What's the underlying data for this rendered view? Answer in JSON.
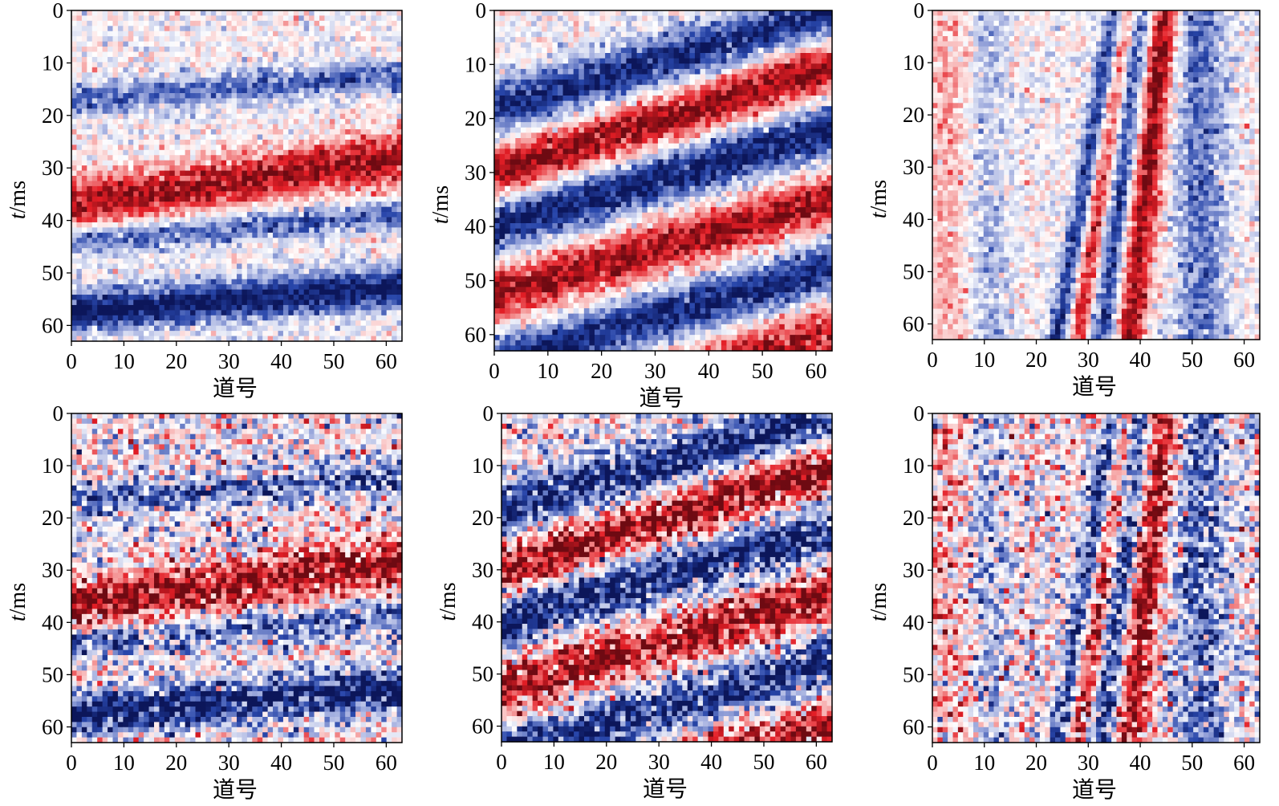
{
  "chart_data": [
    {
      "type": "heatmap",
      "panel": "row1-col1",
      "xlabel": "道号",
      "ylabel_italic": "t",
      "ylabel_rest": "/ms",
      "xticks": [
        0,
        10,
        20,
        30,
        40,
        50,
        60
      ],
      "yticks": [
        0,
        10,
        20,
        30,
        40,
        50,
        60
      ],
      "xlim": [
        0,
        63
      ],
      "ylim": [
        0,
        63
      ],
      "y_inverted": true,
      "colormap": {
        "negative": "#0b1a6e",
        "mid_negative": "#2b4aa8",
        "zero": "#ffffff",
        "mid_positive": "#e8242b",
        "positive": "#6e0b12"
      },
      "events": [
        {
          "polarity": 1,
          "time_at_trace0": 37,
          "time_at_trace63": 28,
          "width": 5,
          "amplitude": 0.9
        },
        {
          "polarity": -1,
          "time_at_trace0": 58,
          "time_at_trace63": 53,
          "width": 4,
          "amplitude": 1.0
        },
        {
          "polarity": -1,
          "time_at_trace0": 17,
          "time_at_trace63": 12,
          "width": 3,
          "amplitude": 0.6
        },
        {
          "polarity": -1,
          "time_at_trace0": 44,
          "time_at_trace63": 39,
          "width": 3,
          "amplitude": 0.6
        }
      ],
      "noise_level": 0.3
    },
    {
      "type": "heatmap",
      "panel": "row1-col2",
      "xlabel": "道号",
      "ylabel_italic": "t",
      "ylabel_rest": "/ms",
      "xticks": [
        0,
        10,
        20,
        30,
        40,
        50,
        60
      ],
      "yticks": [
        0,
        10,
        20,
        30,
        40,
        50,
        60
      ],
      "xlim": [
        0,
        63
      ],
      "ylim": [
        0,
        63
      ],
      "y_inverted": true,
      "events": [
        {
          "polarity": 1,
          "time_at_trace0": 30,
          "time_at_trace63": 10,
          "width": 5,
          "amplitude": 0.95
        },
        {
          "polarity": -1,
          "time_at_trace0": 18,
          "time_at_trace63": 0,
          "width": 5,
          "amplitude": 0.9
        },
        {
          "polarity": -1,
          "time_at_trace0": 40,
          "time_at_trace63": 22,
          "width": 5,
          "amplitude": 0.95
        },
        {
          "polarity": 1,
          "time_at_trace0": 53,
          "time_at_trace63": 35,
          "width": 5,
          "amplitude": 0.9
        },
        {
          "polarity": -1,
          "time_at_trace0": 66,
          "time_at_trace63": 48,
          "width": 5,
          "amplitude": 0.9
        },
        {
          "polarity": 1,
          "time_at_trace0": 78,
          "time_at_trace63": 60,
          "width": 5,
          "amplitude": 0.8
        }
      ],
      "noise_level": 0.3
    },
    {
      "type": "heatmap",
      "panel": "row1-col3",
      "xlabel": "道号",
      "ylabel_italic": "t",
      "ylabel_rest": "/ms",
      "xticks": [
        0,
        10,
        20,
        30,
        40,
        50,
        60
      ],
      "yticks": [
        0,
        10,
        20,
        30,
        40,
        50,
        60
      ],
      "xlim": [
        0,
        63
      ],
      "ylim": [
        0,
        63
      ],
      "y_inverted": true,
      "events": [
        {
          "polarity": 1,
          "trace_at_time0": 45,
          "trace_at_time63": 38,
          "width": 3,
          "amplitude": 0.95
        },
        {
          "polarity": -1,
          "trace_at_time0": 40,
          "trace_at_time63": 33,
          "width": 2.5,
          "amplitude": 0.8
        },
        {
          "polarity": 1,
          "trace_at_time0": 38,
          "trace_at_time63": 28,
          "width": 2,
          "amplitude": 0.75
        },
        {
          "polarity": -1,
          "trace_at_time0": 35,
          "trace_at_time63": 24,
          "width": 2,
          "amplitude": 0.75
        },
        {
          "polarity": -1,
          "trace_at_time0": 52,
          "trace_at_time63": 52,
          "width": 5,
          "amplitude": 0.55
        },
        {
          "polarity": 1,
          "trace_at_time0": 3,
          "trace_at_time63": 3,
          "width": 6,
          "amplitude": 0.3
        },
        {
          "polarity": -1,
          "trace_at_time0": 10,
          "trace_at_time63": 10,
          "width": 4,
          "amplitude": 0.35
        }
      ],
      "noise_level": 0.3
    },
    {
      "type": "heatmap",
      "panel": "row2-col1",
      "xlabel": "道号",
      "ylabel_italic": "t",
      "ylabel_rest": "/ms",
      "xticks": [
        0,
        10,
        20,
        30,
        40,
        50,
        60
      ],
      "yticks": [
        0,
        10,
        20,
        30,
        40,
        50,
        60
      ],
      "xlim": [
        0,
        63
      ],
      "ylim": [
        0,
        63
      ],
      "y_inverted": true,
      "events": [
        {
          "polarity": 1,
          "time_at_trace0": 37,
          "time_at_trace63": 28,
          "width": 5,
          "amplitude": 0.9
        },
        {
          "polarity": -1,
          "time_at_trace0": 58,
          "time_at_trace63": 53,
          "width": 4,
          "amplitude": 1.0
        },
        {
          "polarity": -1,
          "time_at_trace0": 17,
          "time_at_trace63": 12,
          "width": 3,
          "amplitude": 0.6
        },
        {
          "polarity": -1,
          "time_at_trace0": 44,
          "time_at_trace63": 39,
          "width": 3,
          "amplitude": 0.6
        }
      ],
      "noise_level": 0.6
    },
    {
      "type": "heatmap",
      "panel": "row2-col2",
      "xlabel": "道号",
      "ylabel_italic": "t",
      "ylabel_rest": "/ms",
      "xticks": [
        0,
        10,
        20,
        30,
        40,
        50,
        60
      ],
      "yticks": [
        0,
        10,
        20,
        30,
        40,
        50,
        60
      ],
      "xlim": [
        0,
        63
      ],
      "ylim": [
        0,
        63
      ],
      "y_inverted": true,
      "events": [
        {
          "polarity": 1,
          "time_at_trace0": 30,
          "time_at_trace63": 10,
          "width": 5,
          "amplitude": 0.95
        },
        {
          "polarity": -1,
          "time_at_trace0": 18,
          "time_at_trace63": 0,
          "width": 5,
          "amplitude": 0.9
        },
        {
          "polarity": -1,
          "time_at_trace0": 40,
          "time_at_trace63": 22,
          "width": 5,
          "amplitude": 0.95
        },
        {
          "polarity": 1,
          "time_at_trace0": 53,
          "time_at_trace63": 35,
          "width": 5,
          "amplitude": 0.9
        },
        {
          "polarity": -1,
          "time_at_trace0": 66,
          "time_at_trace63": 48,
          "width": 5,
          "amplitude": 0.9
        },
        {
          "polarity": 1,
          "time_at_trace0": 78,
          "time_at_trace63": 60,
          "width": 5,
          "amplitude": 0.8
        }
      ],
      "noise_level": 0.6
    },
    {
      "type": "heatmap",
      "panel": "row2-col3",
      "xlabel": "道号",
      "ylabel_italic": "t",
      "ylabel_rest": "/ms",
      "xticks": [
        0,
        10,
        20,
        30,
        40,
        50,
        60
      ],
      "yticks": [
        0,
        10,
        20,
        30,
        40,
        50,
        60
      ],
      "xlim": [
        0,
        63
      ],
      "ylim": [
        0,
        63
      ],
      "y_inverted": true,
      "events": [
        {
          "polarity": 1,
          "trace_at_time0": 45,
          "trace_at_time63": 38,
          "width": 3,
          "amplitude": 0.95
        },
        {
          "polarity": -1,
          "trace_at_time0": 40,
          "trace_at_time63": 33,
          "width": 2.5,
          "amplitude": 0.8
        },
        {
          "polarity": 1,
          "trace_at_time0": 38,
          "trace_at_time63": 28,
          "width": 2,
          "amplitude": 0.75
        },
        {
          "polarity": -1,
          "trace_at_time0": 35,
          "trace_at_time63": 24,
          "width": 2,
          "amplitude": 0.75
        },
        {
          "polarity": -1,
          "trace_at_time0": 52,
          "trace_at_time63": 52,
          "width": 5,
          "amplitude": 0.55
        },
        {
          "polarity": 1,
          "trace_at_time0": 3,
          "trace_at_time63": 3,
          "width": 6,
          "amplitude": 0.3
        },
        {
          "polarity": -1,
          "trace_at_time0": 10,
          "trace_at_time63": 10,
          "width": 4,
          "amplitude": 0.35
        }
      ],
      "noise_level": 0.6
    }
  ]
}
